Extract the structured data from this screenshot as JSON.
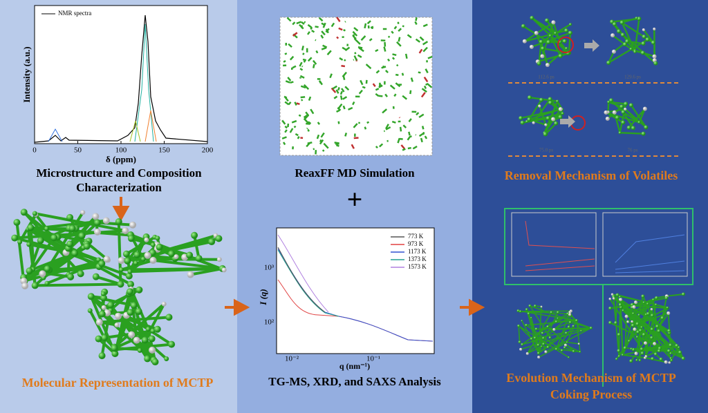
{
  "nmr_panel": {
    "legend": "NMR spectra",
    "y_label": "Intensity (a.u.)",
    "x_label": "δ (ppm)",
    "x_ticks": [
      "0",
      "50",
      "100",
      "150",
      "200"
    ],
    "caption_lines": [
      "Microstructure and Composition",
      "Characterization"
    ],
    "molecule_caption": "Molecular Representation of MCTP"
  },
  "simulation_panel": {
    "caption": "ReaxFF MD Simulation",
    "plus": "+",
    "saxs": {
      "y_label": "I (q)",
      "x_label": "q (nm⁻¹)",
      "y_ticks": [
        "10³",
        "10²"
      ],
      "x_ticks": [
        "10⁻²",
        "10⁻¹"
      ],
      "legend": [
        {
          "name": "773 K",
          "color": "#555555"
        },
        {
          "name": "973 K",
          "color": "#e04040"
        },
        {
          "name": "1173 K",
          "color": "#3050d0"
        },
        {
          "name": "1373 K",
          "color": "#20a090"
        },
        {
          "name": "1573 K",
          "color": "#b080e0"
        }
      ]
    },
    "caption_bottom": "TG-MS, XRD, and SAXS Analysis"
  },
  "mechanism_panel": {
    "time_labels": [
      "112.6 ps",
      "129.6 ps",
      "75.0 ps",
      "76 ps"
    ],
    "removal_caption": "Removal Mechanism of Volatiles",
    "evolution_caption_lines": [
      "Evolution Mechanism of MCTP",
      "Coking Process"
    ]
  }
}
